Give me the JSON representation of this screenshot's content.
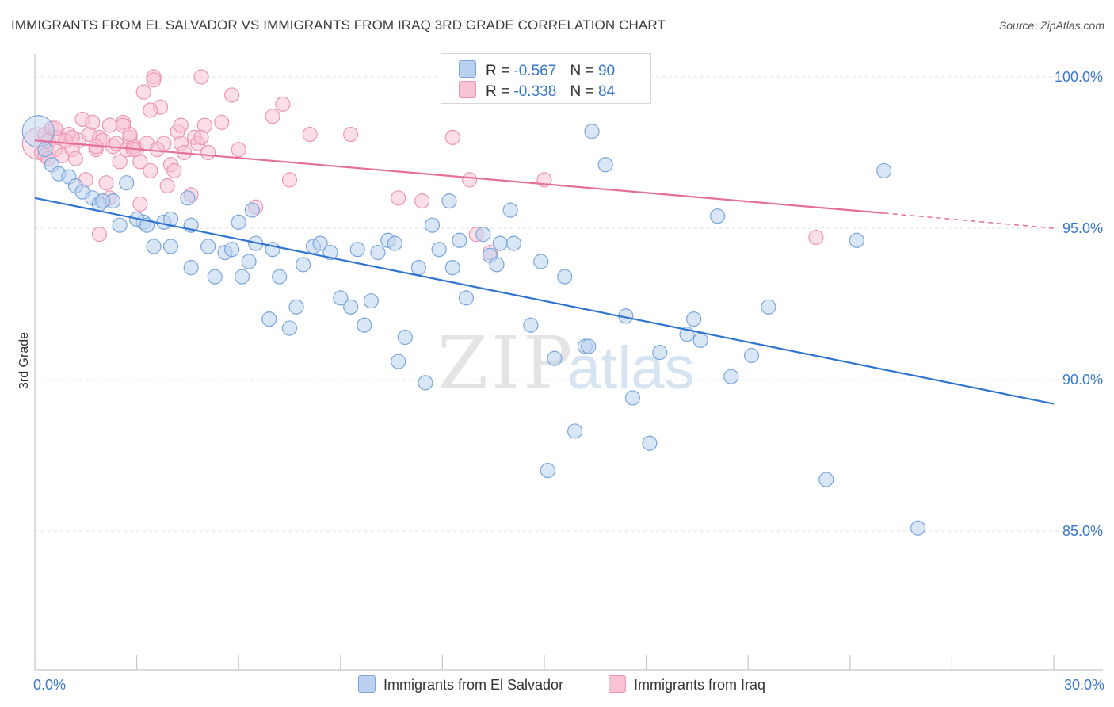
{
  "title": "IMMIGRANTS FROM EL SALVADOR VS IMMIGRANTS FROM IRAQ 3RD GRADE CORRELATION CHART",
  "source": "Source: ZipAtlas.com",
  "watermark": {
    "zip": "ZIP",
    "atlas": "atlas"
  },
  "stats": {
    "el_salvador": {
      "r_label": "R =",
      "r_value": "-0.567",
      "n_label": "N =",
      "n_value": "90"
    },
    "iraq": {
      "r_label": "R =",
      "r_value": "-0.338",
      "n_label": "N =",
      "n_value": "84"
    }
  },
  "legend": {
    "el_salvador": "Immigrants from El Salvador",
    "iraq": "Immigrants from Iraq"
  },
  "colors": {
    "blue_fill": "#b9d1ef",
    "blue_stroke": "#7aa6dc",
    "blue_line": "#2f74d0",
    "pink_fill": "#f7c3d3",
    "pink_stroke": "#ec96b2",
    "pink_line": "#e4709a",
    "tick_label": "#3a76c9",
    "grid": "#dde3ea"
  },
  "chart_data": {
    "type": "scatter",
    "ylabel": "3rd Grade",
    "xlim": [
      0,
      30
    ],
    "ylim": [
      80.6,
      100.7
    ],
    "x_tick_labels": [
      {
        "value": 0,
        "label": "0.0%"
      },
      {
        "value": 30,
        "label": "30.0%"
      }
    ],
    "y_tick_labels": [
      {
        "value": 100,
        "label": "100.0%"
      },
      {
        "value": 95,
        "label": "95.0%"
      },
      {
        "value": 90,
        "label": "90.0%"
      },
      {
        "value": 85,
        "label": "85.0%"
      }
    ],
    "grid": "horizontal dashed",
    "series": [
      {
        "name": "Immigrants from El Salvador",
        "r": -0.567,
        "n": 90,
        "trend": {
          "x": [
            0,
            30
          ],
          "y": [
            96.0,
            89.2
          ]
        },
        "points": [
          [
            0.1,
            98.2
          ],
          [
            0.3,
            97.6
          ],
          [
            0.5,
            97.1
          ],
          [
            0.7,
            96.8
          ],
          [
            1.0,
            96.7
          ],
          [
            1.2,
            96.4
          ],
          [
            1.4,
            96.2
          ],
          [
            1.7,
            96.0
          ],
          [
            1.9,
            95.8
          ],
          [
            2.3,
            95.9
          ],
          [
            2.7,
            96.5
          ],
          [
            2.5,
            95.1
          ],
          [
            3.2,
            95.2
          ],
          [
            3.0,
            95.3
          ],
          [
            3.5,
            94.4
          ],
          [
            3.8,
            95.2
          ],
          [
            4.0,
            95.3
          ],
          [
            4.0,
            94.4
          ],
          [
            4.5,
            96.0
          ],
          [
            4.6,
            95.1
          ],
          [
            4.6,
            93.7
          ],
          [
            5.1,
            94.4
          ],
          [
            5.3,
            93.4
          ],
          [
            5.6,
            94.2
          ],
          [
            5.8,
            94.3
          ],
          [
            6.0,
            95.2
          ],
          [
            6.1,
            93.4
          ],
          [
            6.3,
            93.9
          ],
          [
            6.4,
            95.6
          ],
          [
            6.5,
            94.5
          ],
          [
            6.9,
            92.0
          ],
          [
            7.0,
            94.3
          ],
          [
            7.2,
            93.4
          ],
          [
            7.5,
            91.7
          ],
          [
            7.7,
            92.4
          ],
          [
            7.9,
            93.8
          ],
          [
            8.2,
            94.4
          ],
          [
            8.4,
            94.5
          ],
          [
            8.7,
            94.2
          ],
          [
            9.0,
            92.7
          ],
          [
            9.3,
            92.4
          ],
          [
            9.5,
            94.3
          ],
          [
            9.7,
            91.8
          ],
          [
            9.9,
            92.6
          ],
          [
            10.1,
            94.2
          ],
          [
            10.4,
            94.6
          ],
          [
            10.6,
            94.5
          ],
          [
            10.7,
            90.6
          ],
          [
            10.9,
            91.4
          ],
          [
            11.3,
            93.7
          ],
          [
            11.5,
            89.9
          ],
          [
            11.7,
            95.1
          ],
          [
            11.9,
            94.3
          ],
          [
            12.2,
            95.9
          ],
          [
            12.3,
            93.7
          ],
          [
            12.5,
            94.6
          ],
          [
            12.7,
            92.7
          ],
          [
            13.2,
            94.8
          ],
          [
            13.4,
            94.1
          ],
          [
            13.7,
            94.5
          ],
          [
            13.6,
            93.8
          ],
          [
            14.0,
            95.6
          ],
          [
            14.1,
            94.5
          ],
          [
            14.6,
            91.8
          ],
          [
            14.9,
            93.9
          ],
          [
            15.1,
            87.0
          ],
          [
            15.3,
            90.7
          ],
          [
            15.6,
            93.4
          ],
          [
            15.9,
            88.3
          ],
          [
            16.2,
            91.1
          ],
          [
            16.4,
            98.2
          ],
          [
            16.8,
            97.1
          ],
          [
            17.4,
            92.1
          ],
          [
            17.6,
            89.4
          ],
          [
            18.1,
            87.9
          ],
          [
            18.4,
            90.9
          ],
          [
            19.2,
            91.5
          ],
          [
            19.4,
            92.0
          ],
          [
            19.6,
            91.3
          ],
          [
            20.1,
            95.4
          ],
          [
            20.5,
            90.1
          ],
          [
            21.1,
            90.8
          ],
          [
            21.6,
            92.4
          ],
          [
            23.3,
            86.7
          ],
          [
            24.2,
            94.6
          ],
          [
            25.0,
            96.9
          ],
          [
            26.0,
            85.1
          ],
          [
            16.3,
            91.1
          ],
          [
            3.3,
            95.1
          ],
          [
            2.0,
            95.9
          ]
        ]
      },
      {
        "name": "Immigrants from Iraq",
        "r": -0.338,
        "n": 84,
        "trend": {
          "x": [
            0,
            25.0
          ],
          "y": [
            97.9,
            95.5
          ]
        },
        "trend_dashed": {
          "x": [
            25.0,
            30
          ],
          "y": [
            95.5,
            95.0
          ]
        },
        "points": [
          [
            0.1,
            97.8
          ],
          [
            0.2,
            97.5
          ],
          [
            0.3,
            98.1
          ],
          [
            0.4,
            97.9
          ],
          [
            0.5,
            98.3
          ],
          [
            0.6,
            97.6
          ],
          [
            0.7,
            98.0
          ],
          [
            0.8,
            97.4
          ],
          [
            0.9,
            97.9
          ],
          [
            1.0,
            98.1
          ],
          [
            1.1,
            97.6
          ],
          [
            1.2,
            97.3
          ],
          [
            1.3,
            97.9
          ],
          [
            1.4,
            98.6
          ],
          [
            1.5,
            96.6
          ],
          [
            1.6,
            98.1
          ],
          [
            1.7,
            98.5
          ],
          [
            1.8,
            97.6
          ],
          [
            1.9,
            98.0
          ],
          [
            2.0,
            97.9
          ],
          [
            2.1,
            96.5
          ],
          [
            2.2,
            98.4
          ],
          [
            2.3,
            97.7
          ],
          [
            2.4,
            97.8
          ],
          [
            2.5,
            97.2
          ],
          [
            2.6,
            98.5
          ],
          [
            2.7,
            97.6
          ],
          [
            2.8,
            98.0
          ],
          [
            2.9,
            97.7
          ],
          [
            3.0,
            97.6
          ],
          [
            3.1,
            97.2
          ],
          [
            3.2,
            99.5
          ],
          [
            3.3,
            97.8
          ],
          [
            3.4,
            96.9
          ],
          [
            3.5,
            100.0
          ],
          [
            3.7,
            99.0
          ],
          [
            3.8,
            97.8
          ],
          [
            3.9,
            96.4
          ],
          [
            4.0,
            97.1
          ],
          [
            4.1,
            96.9
          ],
          [
            4.2,
            98.2
          ],
          [
            4.3,
            97.8
          ],
          [
            4.4,
            97.5
          ],
          [
            4.6,
            96.1
          ],
          [
            4.7,
            98.0
          ],
          [
            4.8,
            97.8
          ],
          [
            4.9,
            100.0
          ],
          [
            5.0,
            98.4
          ],
          [
            5.1,
            97.5
          ],
          [
            5.5,
            98.5
          ],
          [
            5.8,
            99.4
          ],
          [
            6.0,
            97.6
          ],
          [
            6.5,
            95.7
          ],
          [
            7.0,
            98.7
          ],
          [
            7.3,
            99.1
          ],
          [
            7.5,
            96.6
          ],
          [
            8.1,
            98.1
          ],
          [
            9.3,
            98.1
          ],
          [
            10.7,
            96.0
          ],
          [
            11.4,
            95.9
          ],
          [
            12.3,
            98.0
          ],
          [
            12.8,
            96.6
          ],
          [
            13.0,
            94.8
          ],
          [
            13.4,
            94.2
          ],
          [
            15.0,
            96.6
          ],
          [
            15.7,
            100.0
          ],
          [
            23.0,
            94.7
          ],
          [
            1.9,
            94.8
          ],
          [
            2.6,
            98.4
          ],
          [
            2.8,
            98.1
          ],
          [
            3.4,
            98.9
          ],
          [
            3.6,
            97.6
          ],
          [
            4.9,
            98.0
          ],
          [
            0.6,
            98.3
          ],
          [
            0.3,
            97.4
          ],
          [
            0.9,
            97.9
          ],
          [
            1.8,
            97.7
          ],
          [
            2.2,
            96.0
          ],
          [
            3.1,
            95.8
          ],
          [
            3.5,
            99.9
          ],
          [
            4.3,
            98.4
          ],
          [
            1.1,
            98.0
          ],
          [
            0.4,
            97.3
          ],
          [
            2.9,
            97.6
          ]
        ]
      }
    ]
  }
}
